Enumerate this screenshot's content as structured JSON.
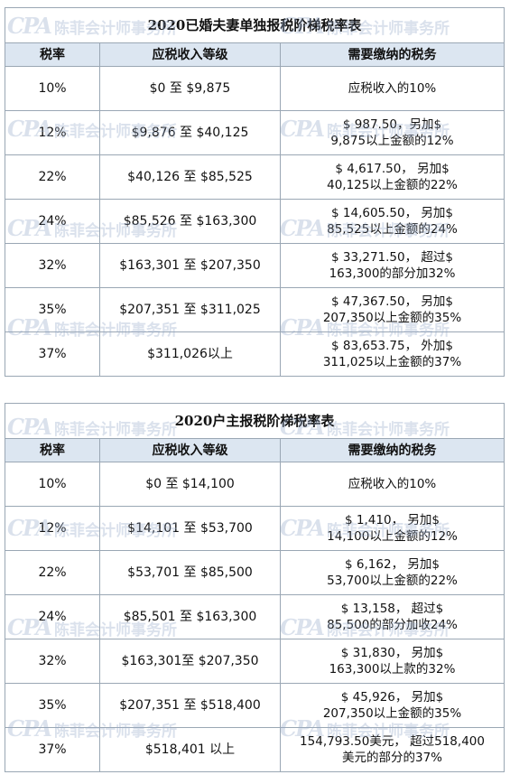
{
  "watermark": {
    "logo": "CPA",
    "text": "陈菲会计师事务所"
  },
  "tables": [
    {
      "title": "2020已婚夫妻单独报税阶梯税率表",
      "headers": [
        "税率",
        "应税收入等级",
        "需要缴纳的税务"
      ],
      "rows": [
        {
          "rate": "10%",
          "bracket": "$0 至 $9,875",
          "tax1": "应税收入的10%",
          "tax2": ""
        },
        {
          "rate": "12%",
          "bracket": "$9,876 至 $40,125",
          "tax1": "$ 987.50，另加$",
          "tax2": "9,875以上金额的12%"
        },
        {
          "rate": "22%",
          "bracket": "$40,126 至 $85,525",
          "tax1": "$ 4,617.50， 另加$",
          "tax2": "40,125以上金额的22%"
        },
        {
          "rate": "24%",
          "bracket": "$85,526 至 $163,300",
          "tax1": "$ 14,605.50， 另加$",
          "tax2": "85,525以上金额的24%"
        },
        {
          "rate": "32%",
          "bracket": "$163,301 至 $207,350",
          "tax1": "$ 33,271.50， 超过$",
          "tax2": "163,300的部分加32%"
        },
        {
          "rate": "35%",
          "bracket": "$207,351 至 $311,025",
          "tax1": "$ 47,367.50， 另加$",
          "tax2": "207,350以上金额的35%"
        },
        {
          "rate": "37%",
          "bracket": "$311,026以上",
          "tax1": "$ 83,653.75， 外加$",
          "tax2": "311,025以上金额的37%"
        }
      ]
    },
    {
      "title": "2020户主报税阶梯税率表",
      "headers": [
        "税率",
        "应税收入等级",
        "需要缴纳的税务"
      ],
      "rows": [
        {
          "rate": "10%",
          "bracket": "$0 至 $14,100",
          "tax1": "应税收入的10%",
          "tax2": ""
        },
        {
          "rate": "12%",
          "bracket": "$14,101 至 $53,700",
          "tax1": "$ 1,410， 另加$",
          "tax2": "14,100以上金额的12%"
        },
        {
          "rate": "22%",
          "bracket": "$53,701 至 $85,500",
          "tax1": "$ 6,162， 另加$",
          "tax2": "53,700以上金额的22%"
        },
        {
          "rate": "24%",
          "bracket": "$85,501 至 $163,300",
          "tax1": "$ 13,158， 超过$",
          "tax2": "85,500的部分加收24%"
        },
        {
          "rate": "32%",
          "bracket": "$163,301至 $207,350",
          "tax1": "$ 31,830， 另加$",
          "tax2": "163,300以上款的32%"
        },
        {
          "rate": "35%",
          "bracket": "$207,351 至 $518,400",
          "tax1": "$ 45,926， 另加$",
          "tax2": "207,350以上金额的35%"
        },
        {
          "rate": "37%",
          "bracket": "$518,401 以上",
          "tax1": "154,793.50美元， 超过518,400",
          "tax2": "美元的部分的37%"
        }
      ]
    }
  ]
}
